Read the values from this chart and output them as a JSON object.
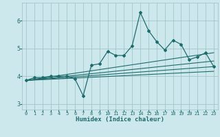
{
  "xlabel": "Humidex (Indice chaleur)",
  "bg_color": "#cce8ec",
  "grid_color": "#9bbfc4",
  "line_color": "#1e6b6b",
  "xlim": [
    -0.5,
    23.5
  ],
  "ylim": [
    2.8,
    6.65
  ],
  "yticks": [
    3,
    4,
    5,
    6
  ],
  "xticks": [
    0,
    1,
    2,
    3,
    4,
    5,
    6,
    7,
    8,
    9,
    10,
    11,
    12,
    13,
    14,
    15,
    16,
    17,
    18,
    19,
    20,
    21,
    22,
    23
  ],
  "main_line_x": [
    0,
    1,
    2,
    3,
    4,
    5,
    6,
    7,
    8,
    9,
    10,
    11,
    12,
    13,
    14,
    15,
    16,
    17,
    18,
    19,
    20,
    21,
    22,
    23
  ],
  "main_line_y": [
    3.85,
    3.95,
    3.95,
    4.0,
    4.0,
    4.0,
    3.9,
    3.3,
    4.4,
    4.45,
    4.9,
    4.75,
    4.75,
    5.1,
    6.3,
    5.65,
    5.25,
    4.95,
    5.3,
    5.15,
    4.6,
    4.7,
    4.85,
    4.35
  ],
  "trend1_x": [
    0,
    23
  ],
  "trend1_y": [
    3.85,
    4.85
  ],
  "trend2_x": [
    0,
    23
  ],
  "trend2_y": [
    3.85,
    4.55
  ],
  "trend3_x": [
    0,
    23
  ],
  "trend3_y": [
    3.85,
    4.35
  ],
  "trend4_x": [
    0,
    23
  ],
  "trend4_y": [
    3.85,
    4.18
  ]
}
